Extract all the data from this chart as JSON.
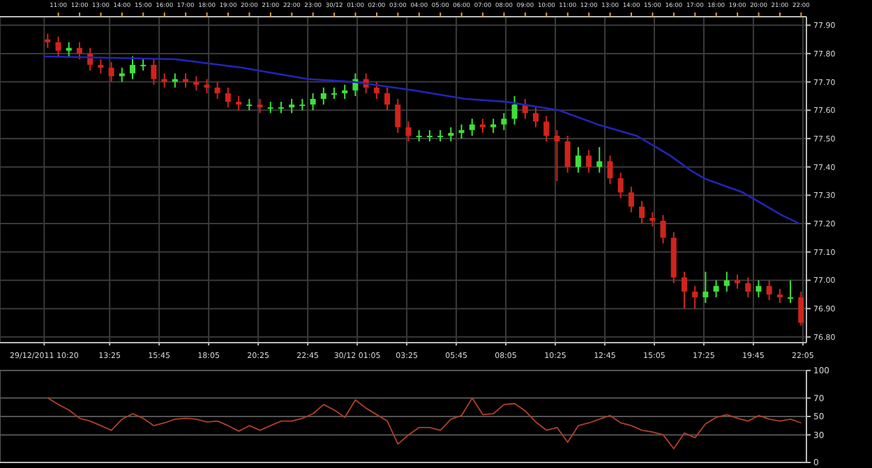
{
  "chart_data": [
    {
      "type": "candlestick",
      "x": [
        "2011-12-29T10:30",
        "2011-12-29T11:00",
        "2011-12-29T11:30",
        "2011-12-29T12:00",
        "2011-12-29T12:30",
        "2011-12-29T13:00",
        "2011-12-29T13:30",
        "2011-12-29T14:00",
        "2011-12-29T14:30",
        "2011-12-29T15:00",
        "2011-12-29T15:30",
        "2011-12-29T16:00",
        "2011-12-29T16:30",
        "2011-12-29T17:00",
        "2011-12-29T17:30",
        "2011-12-29T18:00",
        "2011-12-29T18:30",
        "2011-12-29T19:00",
        "2011-12-29T19:30",
        "2011-12-29T20:00",
        "2011-12-29T20:30",
        "2011-12-29T21:00",
        "2011-12-29T21:30",
        "2011-12-29T22:00",
        "2011-12-29T22:30",
        "2011-12-29T23:00",
        "2011-12-29T23:30",
        "2011-12-30T00:00",
        "2011-12-30T00:30",
        "2011-12-30T01:00",
        "2011-12-30T01:30",
        "2011-12-30T02:00",
        "2011-12-30T02:30",
        "2011-12-30T03:00",
        "2011-12-30T03:30",
        "2011-12-30T04:00",
        "2011-12-30T04:30",
        "2011-12-30T05:00",
        "2011-12-30T05:30",
        "2011-12-30T06:00",
        "2011-12-30T06:30",
        "2011-12-30T07:00",
        "2011-12-30T07:30",
        "2011-12-30T08:00",
        "2011-12-30T08:30",
        "2011-12-30T09:00",
        "2011-12-30T09:30",
        "2011-12-30T10:00",
        "2011-12-30T10:30",
        "2011-12-30T11:00",
        "2011-12-30T11:30",
        "2011-12-30T12:00",
        "2011-12-30T12:30",
        "2011-12-30T13:00",
        "2011-12-30T13:30",
        "2011-12-30T14:00",
        "2011-12-30T14:30",
        "2011-12-30T15:00",
        "2011-12-30T15:30",
        "2011-12-30T16:00",
        "2011-12-30T16:30",
        "2011-12-30T17:00",
        "2011-12-30T17:30",
        "2011-12-30T18:00",
        "2011-12-30T18:30",
        "2011-12-30T19:00",
        "2011-12-30T19:30",
        "2011-12-30T20:00",
        "2011-12-30T20:30",
        "2011-12-30T21:00",
        "2011-12-30T21:30",
        "2011-12-30T22:00"
      ],
      "ohlc": [
        [
          77.85,
          77.87,
          77.82,
          77.84
        ],
        [
          77.84,
          77.86,
          77.79,
          77.81
        ],
        [
          77.81,
          77.84,
          77.79,
          77.82
        ],
        [
          77.82,
          77.84,
          77.78,
          77.8
        ],
        [
          77.8,
          77.82,
          77.74,
          77.76
        ],
        [
          77.76,
          77.78,
          77.73,
          77.75
        ],
        [
          77.75,
          77.77,
          77.7,
          77.72
        ],
        [
          77.72,
          77.75,
          77.7,
          77.73
        ],
        [
          77.73,
          77.79,
          77.71,
          77.76
        ],
        [
          77.76,
          77.78,
          77.74,
          77.76
        ],
        [
          77.76,
          77.78,
          77.69,
          77.71
        ],
        [
          77.71,
          77.73,
          77.68,
          77.7
        ],
        [
          77.7,
          77.73,
          77.68,
          77.71
        ],
        [
          77.71,
          77.73,
          77.68,
          77.7
        ],
        [
          77.7,
          77.72,
          77.67,
          77.69
        ],
        [
          77.69,
          77.71,
          77.66,
          77.68
        ],
        [
          77.68,
          77.7,
          77.64,
          77.66
        ],
        [
          77.66,
          77.68,
          77.61,
          77.63
        ],
        [
          77.63,
          77.65,
          77.6,
          77.62
        ],
        [
          77.62,
          77.64,
          77.6,
          77.62
        ],
        [
          77.62,
          77.64,
          77.59,
          77.61
        ],
        [
          77.61,
          77.63,
          77.59,
          77.61
        ],
        [
          77.61,
          77.63,
          77.59,
          77.61
        ],
        [
          77.61,
          77.64,
          77.59,
          77.62
        ],
        [
          77.62,
          77.64,
          77.6,
          77.62
        ],
        [
          77.62,
          77.66,
          77.6,
          77.64
        ],
        [
          77.64,
          77.68,
          77.62,
          77.66
        ],
        [
          77.66,
          77.68,
          77.64,
          77.66
        ],
        [
          77.66,
          77.69,
          77.64,
          77.67
        ],
        [
          77.67,
          77.73,
          77.65,
          77.71
        ],
        [
          77.71,
          77.73,
          77.66,
          77.68
        ],
        [
          77.68,
          77.7,
          77.64,
          77.66
        ],
        [
          77.66,
          77.68,
          77.6,
          77.62
        ],
        [
          77.62,
          77.64,
          77.52,
          77.54
        ],
        [
          77.54,
          77.56,
          77.49,
          77.51
        ],
        [
          77.51,
          77.53,
          77.49,
          77.51
        ],
        [
          77.51,
          77.53,
          77.49,
          77.51
        ],
        [
          77.51,
          77.53,
          77.49,
          77.51
        ],
        [
          77.51,
          77.54,
          77.49,
          77.52
        ],
        [
          77.52,
          77.55,
          77.5,
          77.53
        ],
        [
          77.53,
          77.57,
          77.51,
          77.55
        ],
        [
          77.55,
          77.57,
          77.52,
          77.54
        ],
        [
          77.54,
          77.57,
          77.52,
          77.55
        ],
        [
          77.55,
          77.59,
          77.53,
          77.57
        ],
        [
          77.57,
          77.65,
          77.55,
          77.62
        ],
        [
          77.62,
          77.64,
          77.57,
          77.59
        ],
        [
          77.59,
          77.61,
          77.54,
          77.56
        ],
        [
          77.56,
          77.58,
          77.49,
          77.51
        ],
        [
          77.51,
          77.53,
          77.35,
          77.49
        ],
        [
          77.49,
          77.51,
          77.38,
          77.4
        ],
        [
          77.4,
          77.47,
          77.38,
          77.44
        ],
        [
          77.44,
          77.46,
          77.38,
          77.4
        ],
        [
          77.4,
          77.47,
          77.38,
          77.42
        ],
        [
          77.42,
          77.44,
          77.34,
          77.36
        ],
        [
          77.36,
          77.38,
          77.29,
          77.31
        ],
        [
          77.31,
          77.33,
          77.24,
          77.26
        ],
        [
          77.26,
          77.28,
          77.2,
          77.22
        ],
        [
          77.22,
          77.24,
          77.19,
          77.21
        ],
        [
          77.21,
          77.23,
          77.13,
          77.15
        ],
        [
          77.15,
          77.17,
          76.99,
          77.01
        ],
        [
          77.01,
          77.03,
          76.9,
          76.96
        ],
        [
          76.96,
          76.98,
          76.9,
          76.94
        ],
        [
          76.94,
          77.03,
          76.92,
          76.96
        ],
        [
          76.96,
          77.0,
          76.94,
          76.98
        ],
        [
          76.98,
          77.03,
          76.96,
          77.0
        ],
        [
          77.0,
          77.02,
          76.97,
          76.99
        ],
        [
          76.99,
          77.01,
          76.94,
          76.96
        ],
        [
          76.96,
          77.0,
          76.94,
          76.98
        ],
        [
          76.98,
          77.0,
          76.93,
          76.95
        ],
        [
          76.95,
          76.97,
          76.92,
          76.94
        ],
        [
          76.94,
          77.0,
          76.92,
          76.94
        ],
        [
          76.94,
          76.96,
          76.84,
          76.85
        ]
      ],
      "colors": [
        "#d0241c",
        "#d0241c",
        "#3ee03a",
        "#d0241c",
        "#d0241c",
        "#d0241c",
        "#d0241c",
        "#3ee03a",
        "#3ee03a",
        "#3ee03a",
        "#d0241c",
        "#d0241c",
        "#3ee03a",
        "#d0241c",
        "#d0241c",
        "#d0241c",
        "#d0241c",
        "#d0241c",
        "#d0241c",
        "#3ee03a",
        "#d0241c",
        "#3ee03a",
        "#3ee03a",
        "#3ee03a",
        "#3ee03a",
        "#3ee03a",
        "#3ee03a",
        "#3ee03a",
        "#3ee03a",
        "#3ee03a",
        "#d0241c",
        "#d0241c",
        "#d0241c",
        "#d0241c",
        "#d0241c",
        "#3ee03a",
        "#3ee03a",
        "#3ee03a",
        "#3ee03a",
        "#3ee03a",
        "#3ee03a",
        "#d0241c",
        "#3ee03a",
        "#3ee03a",
        "#3ee03a",
        "#d0241c",
        "#d0241c",
        "#d0241c",
        "#d0241c",
        "#d0241c",
        "#3ee03a",
        "#d0241c",
        "#3ee03a",
        "#d0241c",
        "#d0241c",
        "#d0241c",
        "#d0241c",
        "#d0241c",
        "#d0241c",
        "#d0241c",
        "#d0241c",
        "#d0241c",
        "#3ee03a",
        "#3ee03a",
        "#3ee03a",
        "#d0241c",
        "#d0241c",
        "#3ee03a",
        "#d0241c",
        "#d0241c",
        "#3ee03a",
        "#d0241c"
      ],
      "series": [
        {
          "type": "line",
          "color": "#2424b8",
          "x": [
            "2011-12-29T10:20",
            "2011-12-29T16:30",
            "2011-12-29T19:40",
            "2011-12-29T22:45",
            "2011-12-30T00:55",
            "2011-12-30T03:45",
            "2011-12-30T06:10",
            "2011-12-30T08:05",
            "2011-12-30T10:35",
            "2011-12-30T12:25",
            "2011-12-30T14:15",
            "2011-12-30T15:50",
            "2011-12-30T16:45",
            "2011-12-30T17:25",
            "2011-12-30T19:15",
            "2011-12-30T21:05",
            "2011-12-30T21:55"
          ],
          "values": [
            77.79,
            77.78,
            77.75,
            77.71,
            77.7,
            77.67,
            77.64,
            77.63,
            77.6,
            77.55,
            77.51,
            77.44,
            77.39,
            77.36,
            77.31,
            77.23,
            77.2
          ]
        }
      ],
      "xlim": [
        "2011-12-29T08:15",
        "2011-12-30T22:15"
      ],
      "xticks": [
        {
          "value": "2011-12-29T10:20",
          "label": "29/12/2011 10:20"
        },
        {
          "value": "2011-12-29T13:25",
          "label": "13:25"
        },
        {
          "value": "2011-12-29T15:45",
          "label": "15:45"
        },
        {
          "value": "2011-12-29T18:05",
          "label": "18:05"
        },
        {
          "value": "2011-12-29T20:25",
          "label": "20:25"
        },
        {
          "value": "2011-12-29T22:45",
          "label": "22:45"
        },
        {
          "value": "2011-12-30T01:05",
          "label": "30/12 01:05"
        },
        {
          "value": "2011-12-30T03:25",
          "label": "03:25"
        },
        {
          "value": "2011-12-30T05:45",
          "label": "05:45"
        },
        {
          "value": "2011-12-30T08:05",
          "label": "08:05"
        },
        {
          "value": "2011-12-30T10:25",
          "label": "10:25"
        },
        {
          "value": "2011-12-30T12:45",
          "label": "12:45"
        },
        {
          "value": "2011-12-30T15:05",
          "label": "15:05"
        },
        {
          "value": "2011-12-30T17:25",
          "label": "17:25"
        },
        {
          "value": "2011-12-30T19:45",
          "label": "19:45"
        },
        {
          "value": "2011-12-30T22:05",
          "label": "22:05"
        }
      ],
      "x2lim": [
        "2011-12-29T08:15",
        "2011-12-30T22:15"
      ],
      "x2ticks": [
        {
          "value": "2011-12-29T11:00",
          "label": "11:00"
        },
        {
          "value": "2011-12-29T12:00",
          "label": "12:00"
        },
        {
          "value": "2011-12-29T13:00",
          "label": "13:00"
        },
        {
          "value": "2011-12-29T14:00",
          "label": "14:00"
        },
        {
          "value": "2011-12-29T15:00",
          "label": "15:00"
        },
        {
          "value": "2011-12-29T16:00",
          "label": "16:00"
        },
        {
          "value": "2011-12-29T17:00",
          "label": "17:00"
        },
        {
          "value": "2011-12-29T18:00",
          "label": "18:00"
        },
        {
          "value": "2011-12-29T19:00",
          "label": "19:00"
        },
        {
          "value": "2011-12-29T20:00",
          "label": "20:00"
        },
        {
          "value": "2011-12-29T21:00",
          "label": "21:00"
        },
        {
          "value": "2011-12-29T22:00",
          "label": "22:00"
        },
        {
          "value": "2011-12-29T23:00",
          "label": "23:00"
        },
        {
          "value": "2011-12-30T00:00",
          "label": "30/12"
        },
        {
          "value": "2011-12-30T01:00",
          "label": "01:00"
        },
        {
          "value": "2011-12-30T02:00",
          "label": "02:00"
        },
        {
          "value": "2011-12-30T03:00",
          "label": "03:00"
        },
        {
          "value": "2011-12-30T04:00",
          "label": "04:00"
        },
        {
          "value": "2011-12-30T05:00",
          "label": "05:00"
        },
        {
          "value": "2011-12-30T06:00",
          "label": "06:00"
        },
        {
          "value": "2011-12-30T07:00",
          "label": "07:00"
        },
        {
          "value": "2011-12-30T08:00",
          "label": "08:00"
        },
        {
          "value": "2011-12-30T09:00",
          "label": "09:00"
        },
        {
          "value": "2011-12-30T10:00",
          "label": "10:00"
        },
        {
          "value": "2011-12-30T11:00",
          "label": "11:00"
        },
        {
          "value": "2011-12-30T12:00",
          "label": "12:00"
        },
        {
          "value": "2011-12-30T13:00",
          "label": "13:00"
        },
        {
          "value": "2011-12-30T14:00",
          "label": "14:00"
        },
        {
          "value": "2011-12-30T15:00",
          "label": "15:00"
        },
        {
          "value": "2011-12-30T16:00",
          "label": "16:00"
        },
        {
          "value": "2011-12-30T17:00",
          "label": "17:00"
        },
        {
          "value": "2011-12-30T18:00",
          "label": "18:00"
        },
        {
          "value": "2011-12-30T19:00",
          "label": "19:00"
        },
        {
          "value": "2011-12-30T20:00",
          "label": "20:00"
        },
        {
          "value": "2011-12-30T21:00",
          "label": "21:00"
        },
        {
          "value": "2011-12-30T22:00",
          "label": "22:00"
        }
      ],
      "ylim": [
        76.78,
        77.93
      ],
      "yticks": [
        {
          "value": 76.8,
          "label": "76.80"
        },
        {
          "value": 76.9,
          "label": "76.90"
        },
        {
          "value": 77.0,
          "label": "77.00"
        },
        {
          "value": 77.1,
          "label": "77.10"
        },
        {
          "value": 77.2,
          "label": "77.20"
        },
        {
          "value": 77.3,
          "label": "77.30"
        },
        {
          "value": 77.4,
          "label": "77.40"
        },
        {
          "value": 77.5,
          "label": "77.50"
        },
        {
          "value": 77.6,
          "label": "77.60"
        },
        {
          "value": 77.7,
          "label": "77.70"
        },
        {
          "value": 77.8,
          "label": "77.80"
        },
        {
          "value": 77.9,
          "label": "77.90"
        }
      ],
      "grid": true
    },
    {
      "type": "line",
      "x": [
        "2011-12-29T10:30",
        "2011-12-29T11:00",
        "2011-12-29T11:30",
        "2011-12-29T12:00",
        "2011-12-29T12:30",
        "2011-12-29T13:00",
        "2011-12-29T13:30",
        "2011-12-29T14:00",
        "2011-12-29T14:30",
        "2011-12-29T15:00",
        "2011-12-29T15:30",
        "2011-12-29T16:00",
        "2011-12-29T16:30",
        "2011-12-29T17:00",
        "2011-12-29T17:30",
        "2011-12-29T18:00",
        "2011-12-29T18:30",
        "2011-12-29T19:00",
        "2011-12-29T19:30",
        "2011-12-29T20:00",
        "2011-12-29T20:30",
        "2011-12-29T21:00",
        "2011-12-29T21:30",
        "2011-12-29T22:00",
        "2011-12-29T22:30",
        "2011-12-29T23:00",
        "2011-12-29T23:30",
        "2011-12-30T00:00",
        "2011-12-30T00:30",
        "2011-12-30T01:00",
        "2011-12-30T01:30",
        "2011-12-30T02:00",
        "2011-12-30T02:30",
        "2011-12-30T03:00",
        "2011-12-30T03:30",
        "2011-12-30T04:00",
        "2011-12-30T04:30",
        "2011-12-30T05:00",
        "2011-12-30T05:30",
        "2011-12-30T06:00",
        "2011-12-30T06:30",
        "2011-12-30T07:00",
        "2011-12-30T07:30",
        "2011-12-30T08:00",
        "2011-12-30T08:30",
        "2011-12-30T09:00",
        "2011-12-30T09:30",
        "2011-12-30T10:00",
        "2011-12-30T10:30",
        "2011-12-30T11:00",
        "2011-12-30T11:30",
        "2011-12-30T12:00",
        "2011-12-30T12:30",
        "2011-12-30T13:00",
        "2011-12-30T13:30",
        "2011-12-30T14:00",
        "2011-12-30T14:30",
        "2011-12-30T15:00",
        "2011-12-30T15:30",
        "2011-12-30T16:00",
        "2011-12-30T16:30",
        "2011-12-30T17:00",
        "2011-12-30T17:30",
        "2011-12-30T18:00",
        "2011-12-30T18:30",
        "2011-12-30T19:00",
        "2011-12-30T19:30",
        "2011-12-30T20:00",
        "2011-12-30T20:30",
        "2011-12-30T21:00",
        "2011-12-30T21:30",
        "2011-12-30T22:00"
      ],
      "series": [
        {
          "color": "#b0402a",
          "values": [
            70,
            63,
            57,
            48,
            45,
            40,
            35,
            47,
            53,
            48,
            40,
            43,
            47,
            48,
            47,
            44,
            45,
            40,
            34,
            40,
            35,
            40,
            45,
            45,
            48,
            53,
            63,
            57,
            49,
            68,
            59,
            52,
            45,
            20,
            30,
            38,
            38,
            35,
            47,
            51,
            70,
            52,
            53,
            63,
            64,
            56,
            44,
            35,
            38,
            22,
            40,
            43,
            47,
            51,
            43,
            40,
            35,
            33,
            30,
            15,
            32,
            27,
            42,
            49,
            52,
            48,
            45,
            51,
            47,
            45,
            47,
            43
          ]
        }
      ],
      "xlim": [
        "2011-12-29T08:15",
        "2011-12-30T22:15"
      ],
      "ylim": [
        0,
        100
      ],
      "yticks": [
        0,
        30,
        50,
        70,
        100
      ],
      "tick_labels": "y",
      "grid": true
    }
  ]
}
